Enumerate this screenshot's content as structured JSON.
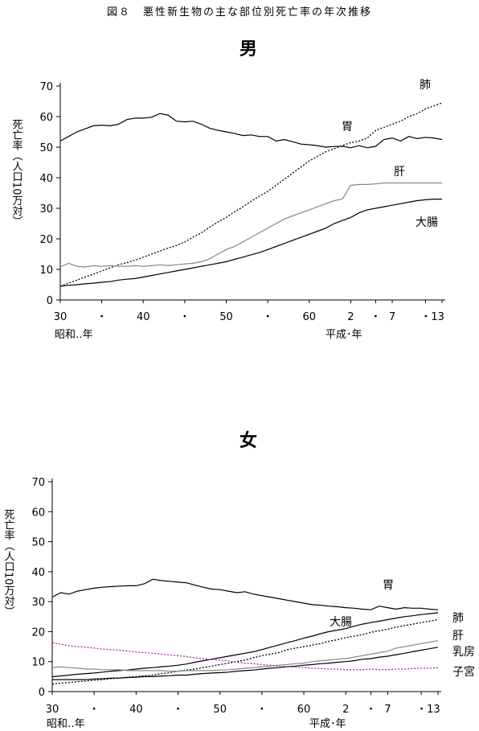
{
  "title": "図８　悪性新生物の主な部位別死亡率の年次推移",
  "chart_data": [
    {
      "type": "line",
      "title": "男",
      "ylabel": "死亡率（人口10万対）",
      "xlabel_left": "昭和‥年",
      "xlabel_right": "平成･年",
      "ylim": [
        0,
        70
      ],
      "yticks": [
        0,
        10,
        20,
        30,
        40,
        50,
        60,
        70
      ],
      "x_tick_labels": [
        "30",
        "・",
        "40",
        "・",
        "50",
        "・",
        "60",
        "2",
        "・",
        "7",
        "・13"
      ],
      "x": [
        "S30",
        "S31",
        "S32",
        "S33",
        "S34",
        "S35",
        "S36",
        "S37",
        "S38",
        "S39",
        "S40",
        "S41",
        "S42",
        "S43",
        "S44",
        "S45",
        "S46",
        "S47",
        "S48",
        "S49",
        "S50",
        "S51",
        "S52",
        "S53",
        "S54",
        "S55",
        "S56",
        "S57",
        "S58",
        "S59",
        "S60",
        "S61",
        "S62",
        "S63",
        "H1",
        "H2",
        "H3",
        "H4",
        "H5",
        "H6",
        "H7",
        "H8",
        "H9",
        "H10",
        "H11",
        "H12",
        "H13"
      ],
      "series": [
        {
          "name": "胃",
          "color": "#000000",
          "style": "solid",
          "values": [
            52.0,
            53.5,
            55.0,
            56.0,
            57.0,
            57.2,
            57.0,
            57.5,
            59.0,
            59.5,
            59.5,
            59.8,
            61.0,
            60.5,
            58.5,
            58.3,
            58.5,
            57.5,
            56.2,
            55.5,
            55.0,
            54.5,
            53.8,
            54.0,
            53.5,
            53.5,
            52.0,
            52.5,
            51.8,
            51.0,
            50.8,
            50.5,
            50.0,
            50.2,
            50.3,
            49.8,
            50.5,
            49.8,
            50.3,
            52.5,
            53.0,
            52.0,
            53.5,
            52.8,
            53.2,
            53.0,
            52.5
          ]
        },
        {
          "name": "肺",
          "color": "#000000",
          "style": "dotted",
          "values": [
            4.5,
            5.5,
            6.5,
            7.5,
            8.5,
            9.5,
            10.5,
            11.5,
            12.2,
            13.0,
            14.0,
            15.0,
            16.0,
            17.0,
            17.8,
            19.0,
            20.5,
            22.0,
            23.8,
            25.5,
            27.0,
            28.8,
            30.5,
            32.3,
            34.0,
            35.5,
            37.5,
            39.5,
            41.5,
            43.5,
            45.5,
            47.0,
            48.5,
            49.5,
            50.5,
            51.5,
            52.0,
            53.0,
            55.5,
            56.5,
            57.5,
            58.5,
            60.0,
            61.0,
            62.5,
            63.5,
            64.5
          ]
        },
        {
          "name": "肝",
          "color": "#888888",
          "style": "solid",
          "values": [
            10.8,
            12.0,
            11.0,
            10.8,
            11.2,
            11.0,
            11.2,
            11.0,
            11.0,
            11.2,
            11.0,
            11.2,
            11.5,
            11.3,
            11.5,
            11.8,
            12.0,
            12.5,
            13.5,
            15.0,
            16.5,
            17.5,
            19.0,
            20.5,
            22.0,
            23.5,
            25.0,
            26.5,
            27.5,
            28.5,
            29.5,
            30.5,
            31.5,
            32.5,
            33.0,
            37.5,
            37.8,
            37.8,
            38.0,
            38.3,
            38.3,
            38.3,
            38.3,
            38.3,
            38.3,
            38.3,
            38.3
          ]
        },
        {
          "name": "大腸",
          "color": "#000000",
          "style": "solid",
          "values": [
            4.5,
            4.8,
            5.0,
            5.3,
            5.5,
            5.8,
            6.0,
            6.5,
            6.8,
            7.0,
            7.5,
            8.0,
            8.5,
            9.0,
            9.5,
            10.0,
            10.5,
            11.0,
            11.5,
            12.0,
            12.5,
            13.3,
            14.0,
            14.8,
            15.5,
            16.5,
            17.5,
            18.5,
            19.5,
            20.5,
            21.5,
            22.5,
            23.5,
            25.0,
            26.0,
            27.0,
            28.5,
            29.5,
            30.0,
            30.5,
            31.0,
            31.5,
            32.0,
            32.5,
            32.8,
            33.0,
            33.0
          ]
        }
      ]
    },
    {
      "type": "line",
      "title": "女",
      "ylabel": "死亡率（人口10万対）",
      "xlabel_left": "昭和‥年",
      "xlabel_right": "平成･年",
      "ylim": [
        0,
        70
      ],
      "yticks": [
        0,
        10,
        20,
        30,
        40,
        50,
        60,
        70
      ],
      "x_tick_labels": [
        "30",
        "・",
        "40",
        "・",
        "50",
        "・",
        "60",
        "2",
        "・",
        "7",
        "・13"
      ],
      "x": [
        "S30",
        "S31",
        "S32",
        "S33",
        "S34",
        "S35",
        "S36",
        "S37",
        "S38",
        "S39",
        "S40",
        "S41",
        "S42",
        "S43",
        "S44",
        "S45",
        "S46",
        "S47",
        "S48",
        "S49",
        "S50",
        "S51",
        "S52",
        "S53",
        "S54",
        "S55",
        "S56",
        "S57",
        "S58",
        "S59",
        "S60",
        "S61",
        "S62",
        "S63",
        "H1",
        "H2",
        "H3",
        "H4",
        "H5",
        "H6",
        "H7",
        "H8",
        "H9",
        "H10",
        "H11",
        "H12",
        "H13"
      ],
      "series": [
        {
          "name": "胃",
          "color": "#000000",
          "style": "solid",
          "values": [
            31.5,
            33.0,
            32.5,
            33.5,
            34.0,
            34.5,
            34.8,
            35.0,
            35.2,
            35.3,
            35.3,
            36.0,
            37.5,
            37.0,
            36.8,
            36.5,
            36.3,
            35.5,
            34.8,
            34.2,
            34.0,
            33.5,
            33.0,
            33.3,
            32.5,
            32.0,
            31.5,
            31.0,
            30.5,
            30.0,
            29.5,
            29.0,
            28.8,
            28.5,
            28.3,
            28.0,
            27.8,
            27.5,
            27.3,
            28.5,
            28.0,
            27.5,
            28.0,
            27.8,
            27.8,
            27.5,
            27.3
          ]
        },
        {
          "name": "大腸",
          "color": "#000000",
          "style": "solid",
          "values": [
            5.0,
            5.2,
            5.5,
            5.8,
            6.0,
            6.2,
            6.5,
            6.8,
            7.0,
            7.2,
            7.5,
            7.8,
            8.0,
            8.3,
            8.5,
            8.8,
            9.2,
            9.8,
            10.3,
            10.8,
            11.3,
            11.8,
            12.3,
            12.8,
            13.3,
            14.0,
            14.8,
            15.5,
            16.3,
            17.0,
            17.8,
            18.5,
            19.3,
            20.0,
            20.5,
            21.0,
            21.8,
            22.5,
            23.0,
            23.5,
            24.0,
            24.5,
            25.0,
            25.3,
            25.7,
            26.0,
            26.3
          ]
        },
        {
          "name": "肺",
          "color": "#000000",
          "style": "dotted",
          "values": [
            2.5,
            2.8,
            3.0,
            3.3,
            3.5,
            3.8,
            4.0,
            4.3,
            4.5,
            4.8,
            5.0,
            5.3,
            5.5,
            6.0,
            6.3,
            6.8,
            7.2,
            7.5,
            8.0,
            8.5,
            9.0,
            9.5,
            10.0,
            10.5,
            11.3,
            12.0,
            12.5,
            13.0,
            14.0,
            14.5,
            15.0,
            15.5,
            16.0,
            16.8,
            17.3,
            18.0,
            18.5,
            19.0,
            19.8,
            20.3,
            20.8,
            21.5,
            22.0,
            22.5,
            23.0,
            23.5,
            24.0
          ]
        },
        {
          "name": "肝",
          "color": "#888888",
          "style": "solid",
          "values": [
            8.0,
            8.3,
            8.0,
            7.8,
            7.5,
            7.5,
            7.3,
            7.3,
            7.3,
            7.0,
            7.0,
            7.0,
            7.0,
            7.0,
            6.8,
            6.8,
            7.0,
            7.0,
            7.0,
            7.0,
            7.2,
            7.3,
            7.5,
            7.8,
            8.0,
            8.3,
            8.5,
            8.8,
            9.0,
            9.3,
            9.5,
            10.0,
            10.3,
            10.5,
            10.8,
            11.0,
            11.5,
            12.0,
            12.5,
            13.0,
            13.5,
            14.5,
            15.0,
            15.5,
            16.0,
            16.5,
            17.0
          ]
        },
        {
          "name": "乳房",
          "color": "#000000",
          "style": "solid",
          "values": [
            4.0,
            4.0,
            4.0,
            4.0,
            4.0,
            4.2,
            4.3,
            4.5,
            4.5,
            4.7,
            4.8,
            5.0,
            5.0,
            5.2,
            5.3,
            5.5,
            5.5,
            5.8,
            6.0,
            6.2,
            6.3,
            6.5,
            6.8,
            7.0,
            7.2,
            7.5,
            7.8,
            8.0,
            8.3,
            8.5,
            8.8,
            9.0,
            9.3,
            9.5,
            9.8,
            10.0,
            10.3,
            10.8,
            11.0,
            11.5,
            11.8,
            12.3,
            12.8,
            13.3,
            13.8,
            14.3,
            14.8
          ]
        },
        {
          "name": "子宮",
          "color": "#9b2aa0",
          "style": "dotted",
          "values": [
            16.3,
            15.8,
            15.3,
            15.0,
            14.8,
            14.5,
            14.2,
            14.0,
            13.8,
            13.5,
            13.2,
            13.0,
            12.8,
            12.5,
            12.2,
            12.0,
            11.7,
            11.3,
            11.0,
            10.7,
            10.5,
            10.2,
            9.8,
            9.5,
            9.3,
            9.0,
            8.8,
            8.5,
            8.3,
            8.2,
            8.0,
            7.8,
            7.7,
            7.5,
            7.5,
            7.3,
            7.3,
            7.3,
            7.5,
            7.3,
            7.3,
            7.5,
            7.5,
            7.7,
            7.8,
            7.8,
            8.0
          ]
        }
      ]
    }
  ]
}
